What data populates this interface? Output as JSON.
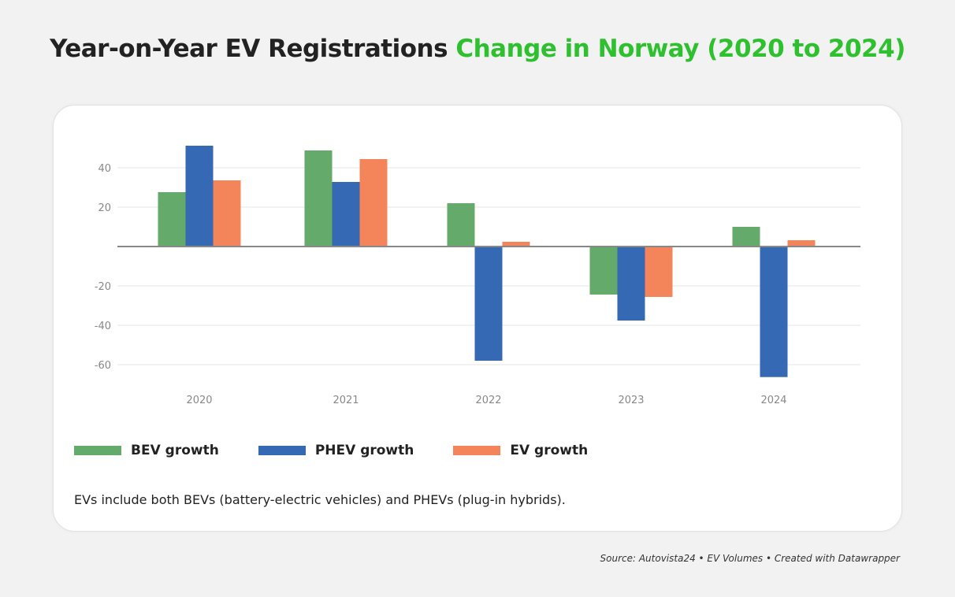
{
  "title": {
    "main": "Year-on-Year EV Registrations",
    "accent": "Change in Norway (2020 to 2024)"
  },
  "colors": {
    "accent": "#2ec02e",
    "bev": "#64aa6a",
    "phev": "#3569b3",
    "ev": "#f4845a"
  },
  "note": "EVs include both BEVs (battery-electric vehicles) and PHEVs (plug-in hybrids).",
  "source": "Source: Autovista24 • EV Volumes • Created with Datawrapper",
  "chart_data": {
    "type": "bar",
    "title": "Year-on-Year EV Registrations Change in Norway (2020 to 2024)",
    "xlabel": "",
    "ylabel": "",
    "categories": [
      "2020",
      "2021",
      "2022",
      "2023",
      "2024"
    ],
    "series": [
      {
        "name": "BEV growth",
        "color": "#64aa6a",
        "values": [
          27.6,
          48.8,
          22.0,
          -24.4,
          10.0
        ]
      },
      {
        "name": "PHEV growth",
        "color": "#3569b3",
        "values": [
          51.2,
          32.8,
          -58.0,
          -37.6,
          -66.3
        ]
      },
      {
        "name": "EV growth",
        "color": "#f4845a",
        "values": [
          33.6,
          44.4,
          2.4,
          -25.6,
          3.2
        ]
      }
    ],
    "yticks": [
      40,
      20,
      -20,
      -40,
      -60
    ],
    "ytick_labels": [
      "40",
      "20",
      "-20",
      "-40",
      "-60"
    ],
    "ylim": [
      -70,
      55
    ],
    "grid": true,
    "legend": "bottom-left"
  }
}
